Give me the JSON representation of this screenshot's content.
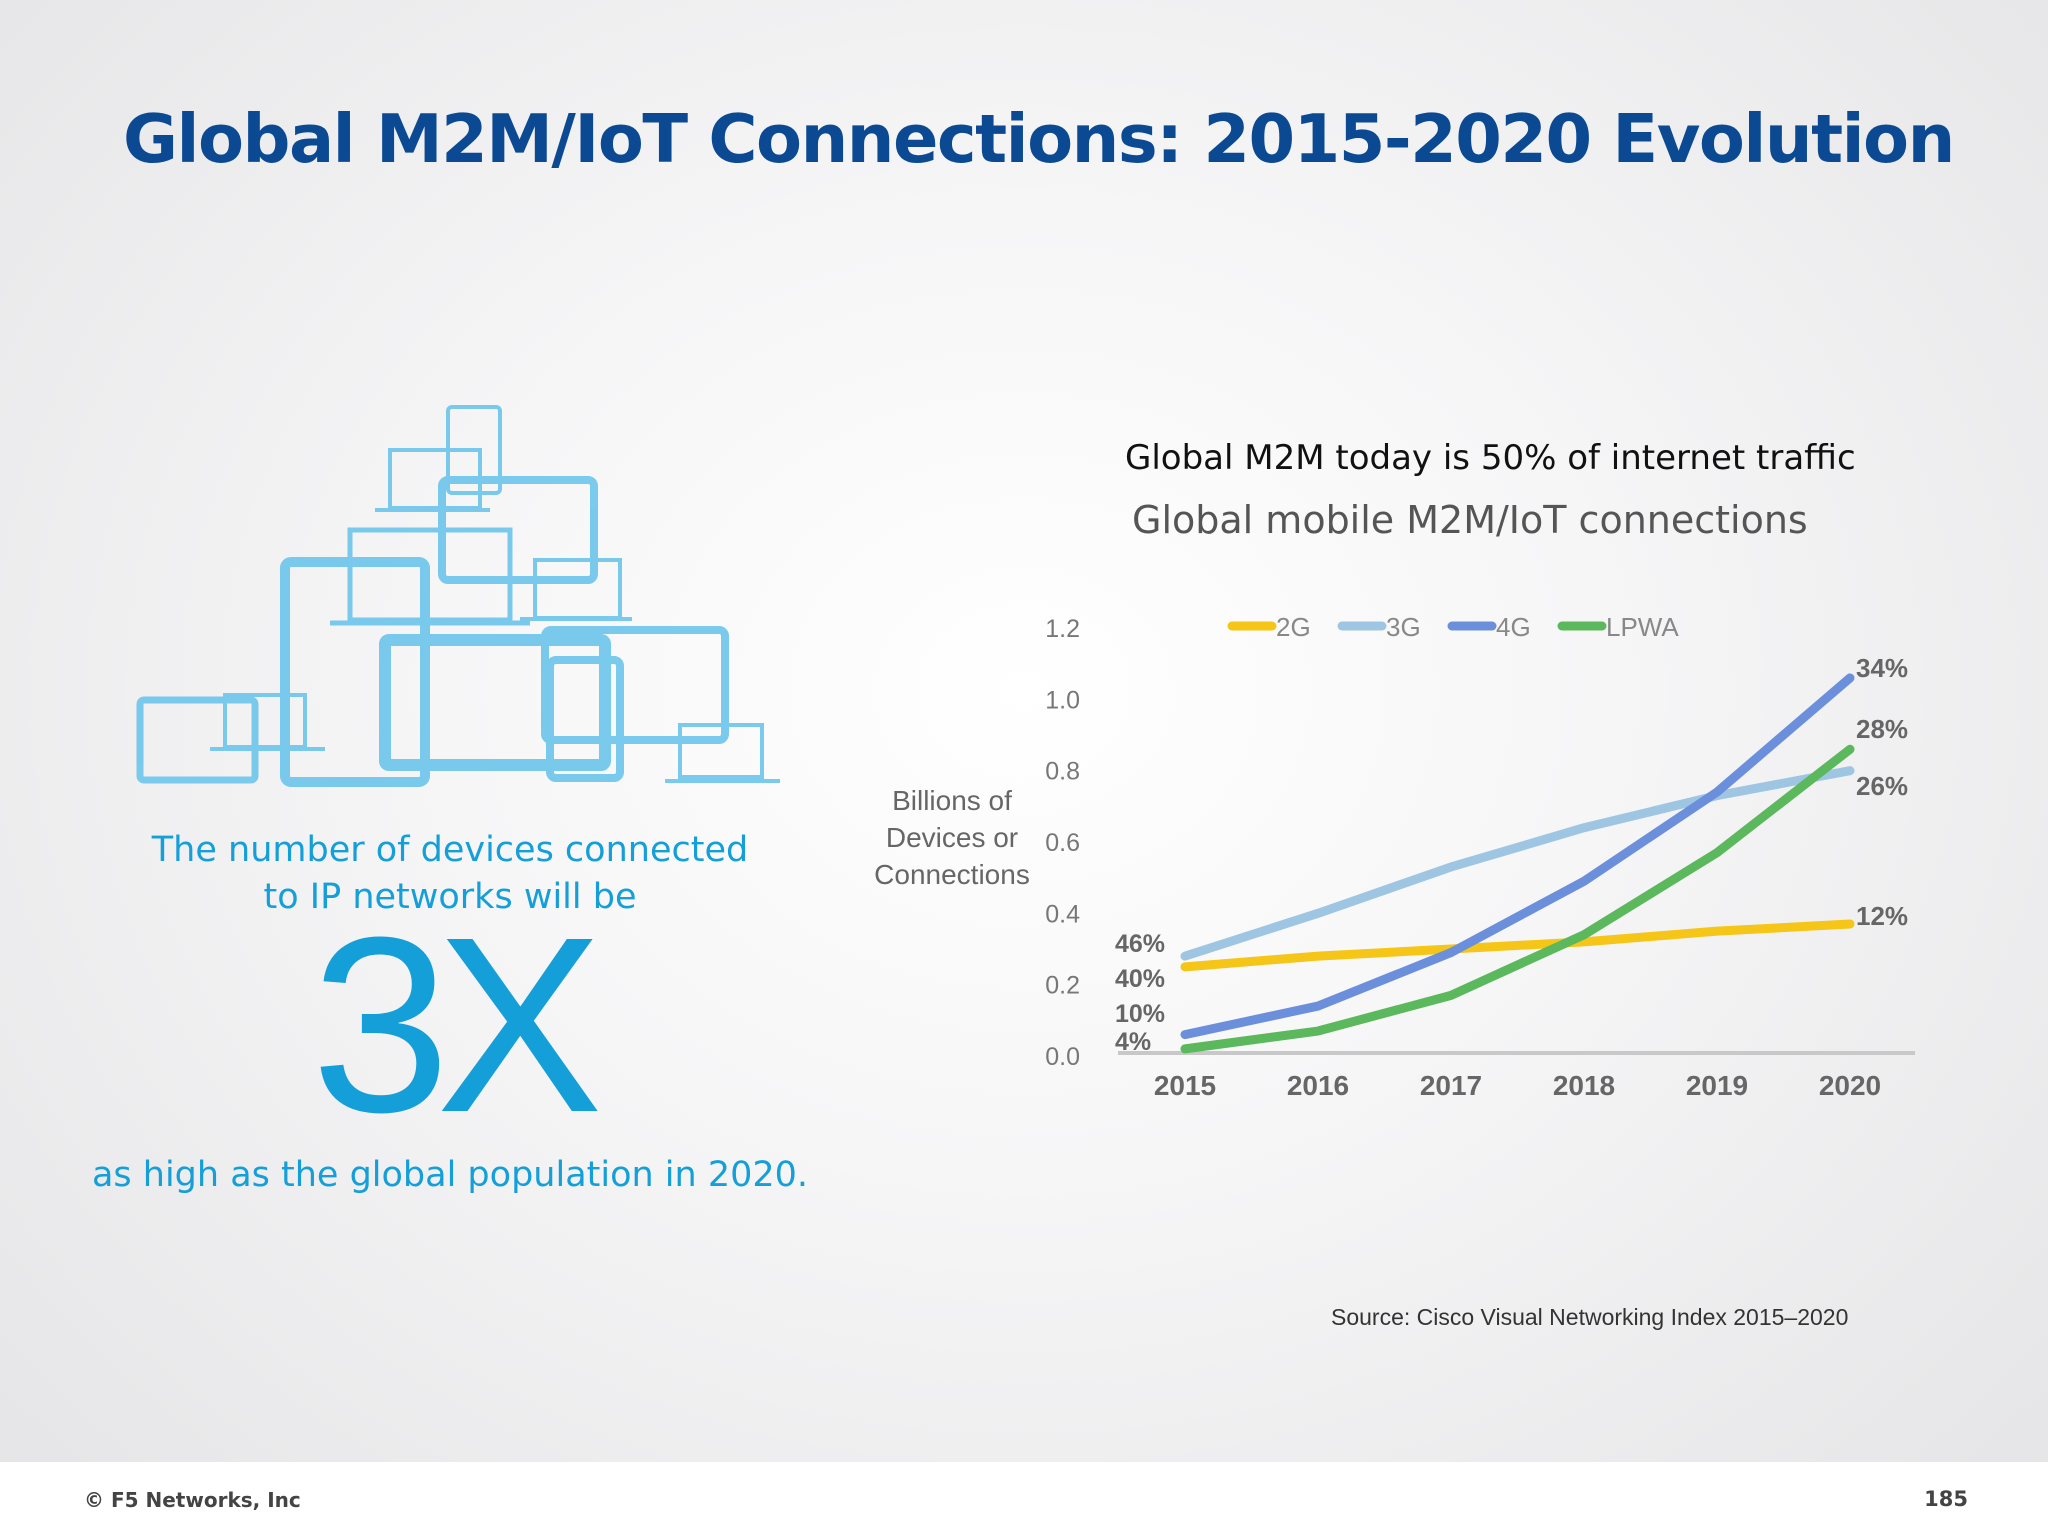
{
  "slide": {
    "title": "Global M2M/IoT Connections: 2015-2020 Evolution",
    "subtitle": "Global M2M today is 50% of internet traffic",
    "source": "Source: Cisco Visual Networking Index 2015–2020",
    "footer": {
      "copyright": "© F5 Networks, Inc",
      "page_number": "185"
    }
  },
  "stat": {
    "line1": "The number of devices connected",
    "line2": "to IP networks will be",
    "big": "3X",
    "line3": "as high as the global population in 2020.",
    "color": "#159fd9"
  },
  "illustration": {
    "icon": "connected-devices-icon",
    "color": "#6cc5ec"
  },
  "chart_data": {
    "type": "line",
    "title": "Global mobile M2M/IoT connections",
    "ylabel": "Billions of Devices or Connections",
    "xlabel": "",
    "categories": [
      "2015",
      "2016",
      "2017",
      "2018",
      "2019",
      "2020"
    ],
    "ylim": [
      0,
      1.2
    ],
    "yticks": [
      "0.0",
      "0.2",
      "0.4",
      "0.6",
      "0.8",
      "1.0",
      "1.2"
    ],
    "legend_position": "top",
    "grid": false,
    "series": [
      {
        "name": "2G",
        "color": "#f5c518",
        "values": [
          0.25,
          0.28,
          0.3,
          0.32,
          0.35,
          0.37
        ],
        "start_label": "40%",
        "end_label": "12%"
      },
      {
        "name": "3G",
        "color": "#9ec6e3",
        "values": [
          0.28,
          0.4,
          0.53,
          0.64,
          0.73,
          0.8
        ],
        "start_label": "46%",
        "end_label": "26%"
      },
      {
        "name": "4G",
        "color": "#6c8fdb",
        "values": [
          0.06,
          0.14,
          0.29,
          0.49,
          0.74,
          1.06
        ],
        "start_label": "10%",
        "end_label": "34%"
      },
      {
        "name": "LPWA",
        "color": "#5cb85c",
        "values": [
          0.02,
          0.07,
          0.17,
          0.34,
          0.57,
          0.86
        ],
        "start_label": "4%",
        "end_label": "28%"
      }
    ]
  }
}
